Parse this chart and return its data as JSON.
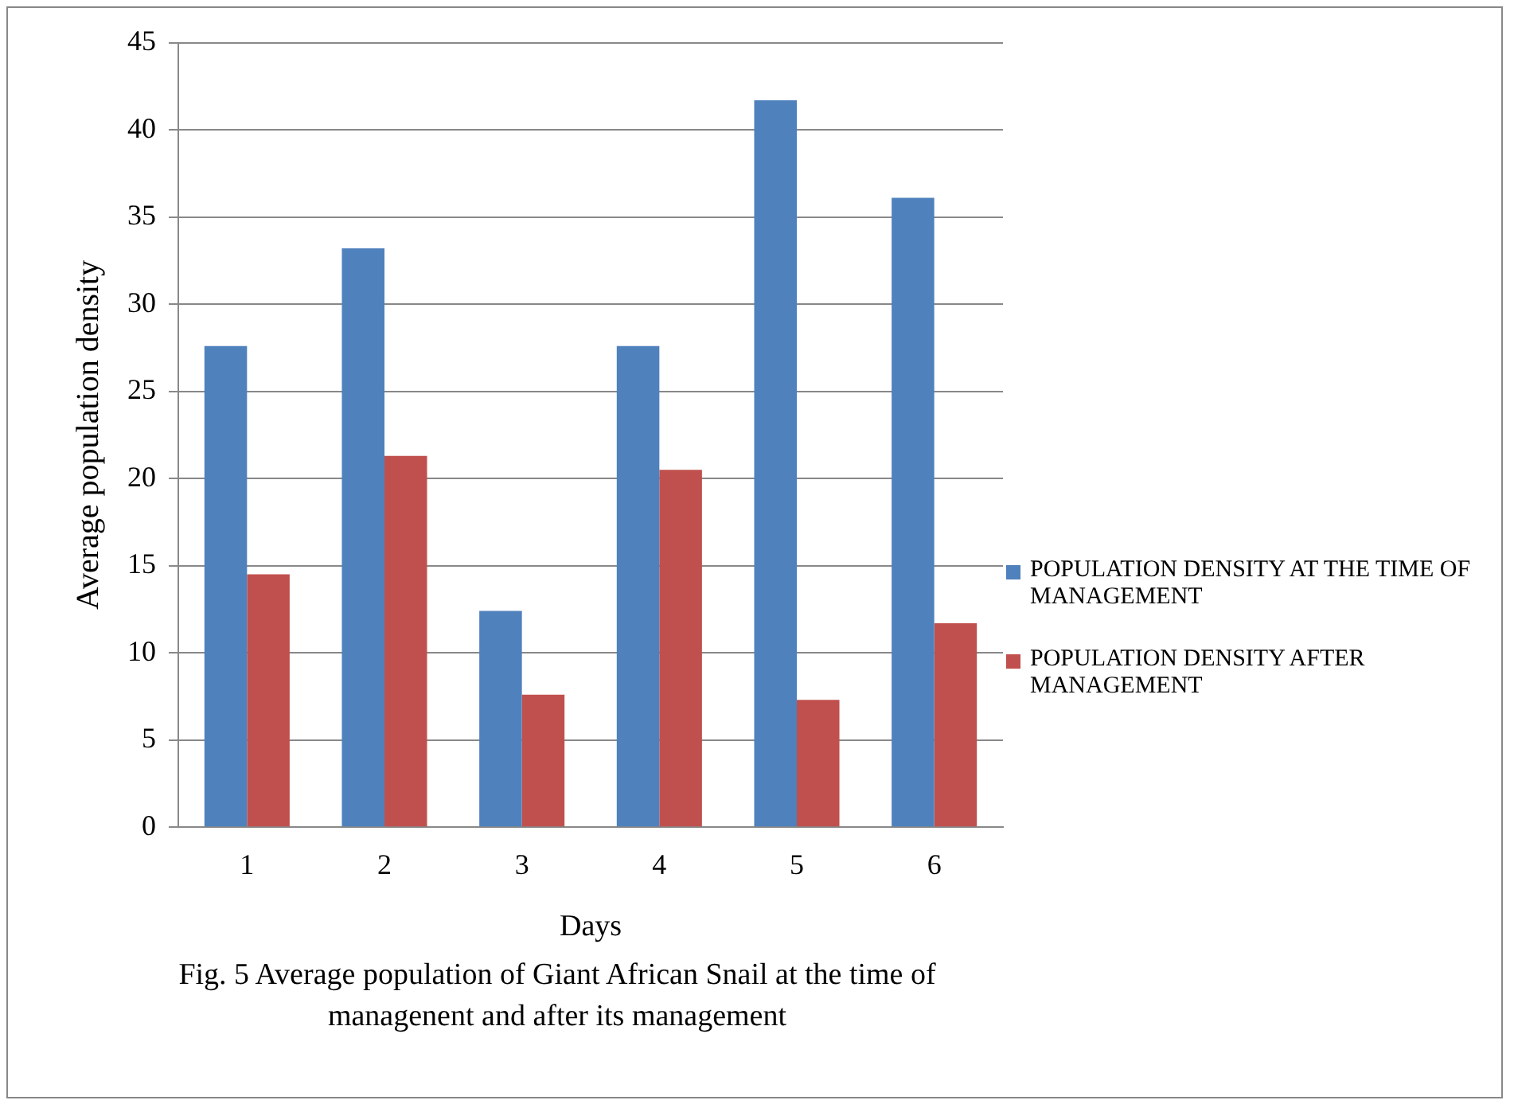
{
  "chart_data": {
    "type": "bar",
    "ylabel": "Average population density",
    "xlabel": "Days",
    "categories": [
      "1",
      "2",
      "3",
      "4",
      "5",
      "6"
    ],
    "series": [
      {
        "name": "POPULATION DENSITY AT THE TIME OF  MANAGEMENT",
        "color": "#4f81bd",
        "values": [
          27.6,
          33.2,
          12.4,
          27.6,
          41.7,
          36.1
        ]
      },
      {
        "name": "POPULATION DENSITY AFTER MANAGEMENT",
        "color": "#c0504d",
        "values": [
          14.5,
          21.3,
          7.6,
          20.5,
          7.3,
          11.7
        ]
      }
    ],
    "ylim": [
      0,
      45
    ],
    "yticks": [
      0,
      5,
      10,
      15,
      20,
      25,
      30,
      35,
      40,
      45
    ],
    "grid": "y",
    "legend": "right",
    "annotations": [
      "Fig. 5  Average population of Giant African Snail at the time of managenent and after its management"
    ]
  }
}
